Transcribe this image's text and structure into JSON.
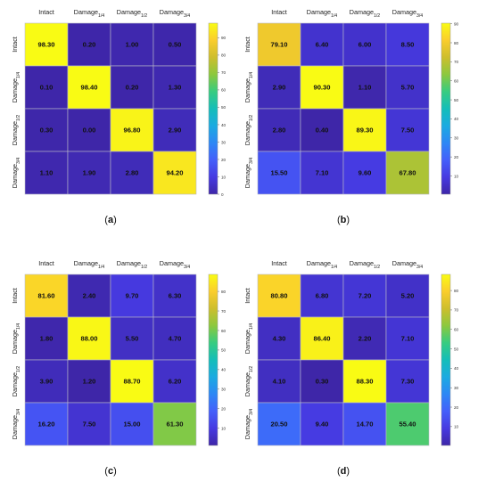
{
  "chart_data": [
    {
      "type": "heatmap",
      "panel_label": "(a)",
      "columns": [
        "Intact",
        "Damage1/4",
        "Damage1/2",
        "Damage3/4"
      ],
      "rows": [
        "Intact",
        "Damage1/4",
        "Damage1/2",
        "Damage3/4"
      ],
      "values": [
        [
          98.3,
          0.2,
          1.0,
          0.5
        ],
        [
          0.1,
          98.4,
          0.2,
          1.3
        ],
        [
          0.3,
          0.0,
          96.8,
          2.9
        ],
        [
          1.1,
          1.9,
          2.8,
          94.2
        ]
      ],
      "colorbar_ticks": [
        0,
        10,
        20,
        30,
        40,
        50,
        60,
        70,
        80,
        90
      ],
      "zlim": [
        0,
        98.4
      ]
    },
    {
      "type": "heatmap",
      "panel_label": "(b)",
      "columns": [
        "Intact",
        "Damage1/4",
        "Damage1/2",
        "Damage3/4"
      ],
      "rows": [
        "Intact",
        "Damage1/4",
        "Damage1/2",
        "Damage3/4"
      ],
      "values": [
        [
          79.1,
          6.4,
          6.0,
          8.5
        ],
        [
          2.9,
          90.3,
          1.1,
          5.7
        ],
        [
          2.8,
          0.4,
          89.3,
          7.5
        ],
        [
          15.5,
          7.1,
          9.6,
          67.8
        ]
      ],
      "colorbar_ticks": [
        10,
        20,
        30,
        40,
        50,
        60,
        70,
        80,
        90
      ],
      "zlim": [
        0.4,
        90.3
      ]
    },
    {
      "type": "heatmap",
      "panel_label": "(c)",
      "columns": [
        "Intact",
        "Damage1/4",
        "Damage1/2",
        "Damage3/4"
      ],
      "rows": [
        "Intact",
        "Damage1/4",
        "Damage1/2",
        "Damage3/4"
      ],
      "values": [
        [
          81.6,
          2.4,
          9.7,
          6.3
        ],
        [
          1.8,
          88.0,
          5.5,
          4.7
        ],
        [
          3.9,
          1.2,
          88.7,
          6.2
        ],
        [
          16.2,
          7.5,
          15.0,
          61.3
        ]
      ],
      "colorbar_ticks": [
        10,
        20,
        30,
        40,
        50,
        60,
        70,
        80
      ],
      "zlim": [
        1.2,
        88.7
      ]
    },
    {
      "type": "heatmap",
      "panel_label": "(d)",
      "columns": [
        "Intact",
        "Damage1/4",
        "Damage1/2",
        "Damage3/4"
      ],
      "rows": [
        "Intact",
        "Damage1/4",
        "Damage1/2",
        "Damage3/4"
      ],
      "values": [
        [
          80.8,
          6.8,
          7.2,
          5.2
        ],
        [
          4.3,
          86.4,
          2.2,
          7.1
        ],
        [
          4.1,
          0.3,
          88.3,
          7.3
        ],
        [
          20.5,
          9.4,
          14.7,
          55.4
        ]
      ],
      "colorbar_ticks": [
        10,
        20,
        30,
        40,
        50,
        60,
        70,
        80
      ],
      "zlim": [
        0.3,
        88.3
      ]
    }
  ]
}
